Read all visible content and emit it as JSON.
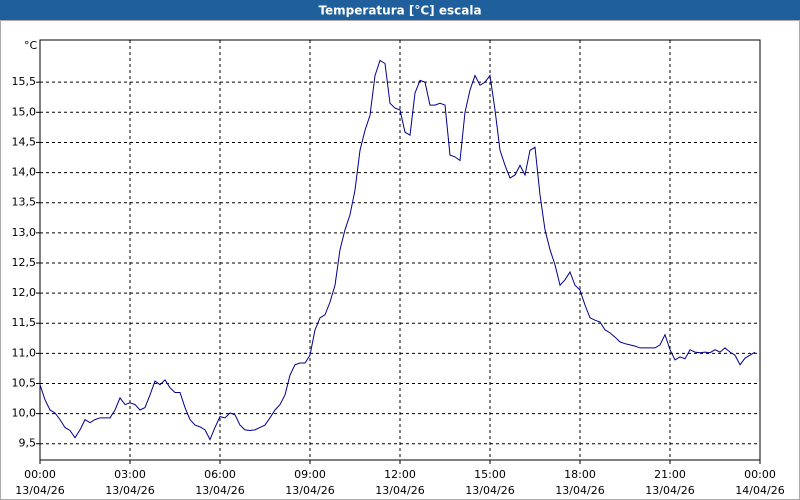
{
  "chart_data": {
    "type": "line",
    "title": "Temperatura [°C] escala",
    "y_unit": "°C",
    "xlim": [
      0,
      1440
    ],
    "xticks": [
      {
        "value": 0,
        "label": "00:00",
        "date": "13/04/26"
      },
      {
        "value": 180,
        "label": "03:00",
        "date": "13/04/26"
      },
      {
        "value": 360,
        "label": "06:00",
        "date": "13/04/26"
      },
      {
        "value": 540,
        "label": "09:00",
        "date": "13/04/26"
      },
      {
        "value": 720,
        "label": "12:00",
        "date": "13/04/26"
      },
      {
        "value": 900,
        "label": "15:00",
        "date": "13/04/26"
      },
      {
        "value": 1080,
        "label": "18:00",
        "date": "13/04/26"
      },
      {
        "value": 1260,
        "label": "21:00",
        "date": "13/04/26"
      },
      {
        "value": 1440,
        "label": "00:00",
        "date": "14/04/26"
      }
    ],
    "ylim": [
      9.23,
      16.2
    ],
    "yticks": [
      {
        "value": 9.5,
        "label": "9,5"
      },
      {
        "value": 10,
        "label": "10,0"
      },
      {
        "value": 10.5,
        "label": "10,5"
      },
      {
        "value": 11,
        "label": "11,0"
      },
      {
        "value": 11.5,
        "label": "11,5"
      },
      {
        "value": 12,
        "label": "12,0"
      },
      {
        "value": 12.5,
        "label": "12,5"
      },
      {
        "value": 13,
        "label": "13,0"
      },
      {
        "value": 13.5,
        "label": "13,5"
      },
      {
        "value": 14,
        "label": "14,0"
      },
      {
        "value": 14.5,
        "label": "14,5"
      },
      {
        "value": 15,
        "label": "15,0"
      },
      {
        "value": 15.5,
        "label": "15,5"
      }
    ],
    "grid": true,
    "x": [
      0,
      10,
      20,
      30,
      40,
      50,
      60,
      70,
      80,
      90,
      100,
      110,
      120,
      130,
      140,
      150,
      160,
      170,
      180,
      190,
      200,
      210,
      220,
      230,
      240,
      250,
      260,
      270,
      280,
      290,
      300,
      310,
      320,
      330,
      340,
      350,
      360,
      370,
      380,
      390,
      400,
      410,
      420,
      430,
      440,
      450,
      460,
      470,
      480,
      490,
      500,
      510,
      520,
      530,
      540,
      550,
      560,
      570,
      580,
      590,
      600,
      610,
      620,
      630,
      640,
      650,
      660,
      670,
      680,
      690,
      700,
      710,
      720,
      730,
      740,
      750,
      760,
      770,
      780,
      790,
      800,
      810,
      820,
      830,
      840,
      850,
      860,
      870,
      880,
      890,
      900,
      910,
      920,
      930,
      940,
      950,
      960,
      970,
      980,
      990,
      1000,
      1010,
      1020,
      1030,
      1040,
      1050,
      1060,
      1070,
      1080,
      1090,
      1100,
      1110,
      1120,
      1130,
      1140,
      1150,
      1160,
      1170,
      1180,
      1190,
      1200,
      1210,
      1220,
      1230,
      1240,
      1250,
      1260,
      1270,
      1280,
      1290,
      1300,
      1310,
      1320,
      1330,
      1340,
      1350,
      1360,
      1370,
      1380,
      1390,
      1400,
      1410,
      1420,
      1430
    ],
    "series": [
      {
        "name": "Temperatura",
        "color": "#00008b",
        "values": [
          10.48,
          10.23,
          10.06,
          10.01,
          9.9,
          9.77,
          9.72,
          9.6,
          9.73,
          9.9,
          9.85,
          9.9,
          9.93,
          9.93,
          9.93,
          10.06,
          10.26,
          10.15,
          10.18,
          10.15,
          10.06,
          10.1,
          10.31,
          10.54,
          10.48,
          10.56,
          10.43,
          10.35,
          10.35,
          10.1,
          9.9,
          9.81,
          9.78,
          9.73,
          9.57,
          9.77,
          9.95,
          9.93,
          10.01,
          9.98,
          9.81,
          9.73,
          9.72,
          9.73,
          9.77,
          9.81,
          9.93,
          10.06,
          10.15,
          10.31,
          10.64,
          10.81,
          10.84,
          10.84,
          10.97,
          11.39,
          11.59,
          11.64,
          11.85,
          12.13,
          12.72,
          13.05,
          13.3,
          13.71,
          14.37,
          14.7,
          14.95,
          15.61,
          15.86,
          15.81,
          15.15,
          15.07,
          15.04,
          14.67,
          14.62,
          15.32,
          15.53,
          15.5,
          15.12,
          15.12,
          15.15,
          15.12,
          14.29,
          14.26,
          14.2,
          15.0,
          15.37,
          15.61,
          15.45,
          15.5,
          15.61,
          15.04,
          14.37,
          14.12,
          13.91,
          13.96,
          14.12,
          13.96,
          14.37,
          14.42,
          13.63,
          13.05,
          12.72,
          12.47,
          12.13,
          12.22,
          12.35,
          12.13,
          12.05,
          11.8,
          11.59,
          11.55,
          11.52,
          11.39,
          11.34,
          11.27,
          11.19,
          11.16,
          11.14,
          11.12,
          11.09,
          11.09,
          11.09,
          11.09,
          11.14,
          11.31,
          11.06,
          10.89,
          10.94,
          10.91,
          11.06,
          11.02,
          11.01,
          11.02,
          11.01,
          11.06,
          11.02,
          11.09,
          11.02,
          10.97,
          10.81,
          10.92,
          10.97,
          11.02
        ]
      }
    ]
  }
}
